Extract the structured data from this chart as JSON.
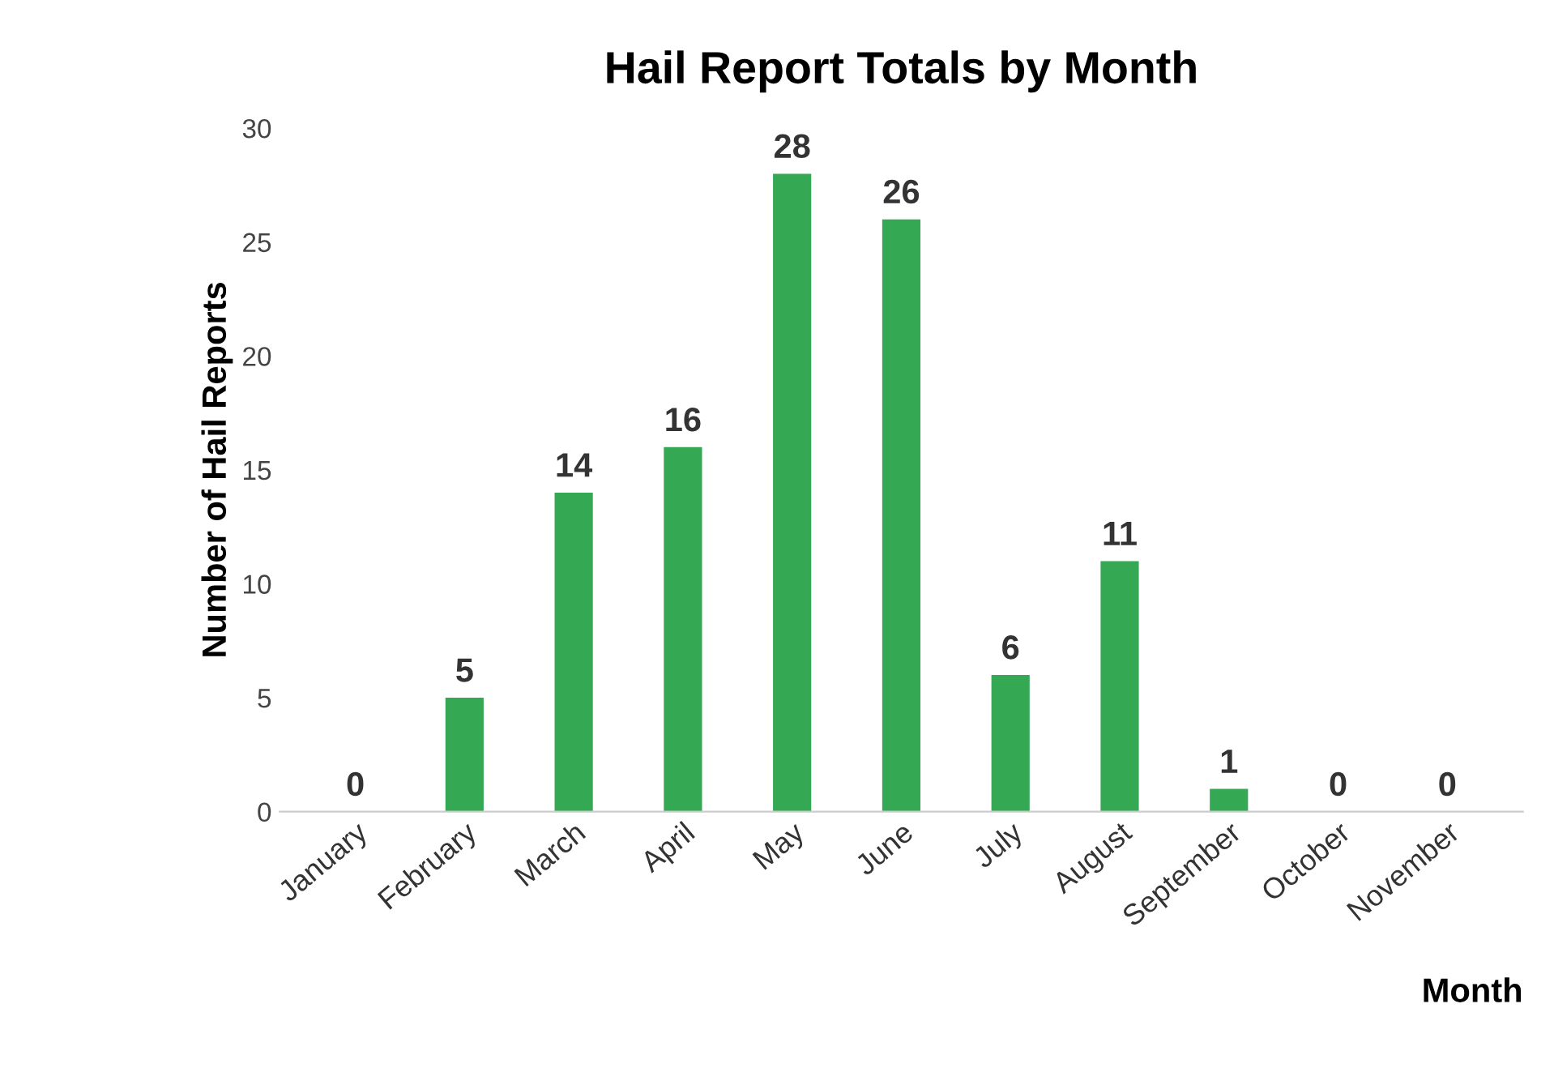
{
  "chart_data": {
    "type": "bar",
    "title": "Hail Report Totals by Month",
    "xlabel": "Month",
    "ylabel": "Number of Hail Reports",
    "categories": [
      "January",
      "February",
      "March",
      "April",
      "May",
      "June",
      "July",
      "August",
      "September",
      "October",
      "November"
    ],
    "values": [
      0,
      5,
      14,
      16,
      28,
      26,
      6,
      11,
      1,
      0,
      0
    ],
    "color": "#34a853",
    "ylim": [
      0,
      30
    ],
    "yticks": [
      0,
      5,
      10,
      15,
      20,
      25,
      30
    ],
    "data_labels": true,
    "grid": false
  }
}
